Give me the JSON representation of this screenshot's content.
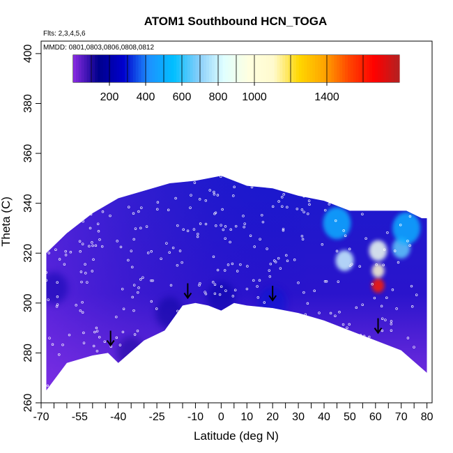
{
  "chart_data": {
    "type": "heatmap",
    "title": "ATOM1 Southbound HCN_TOGA",
    "flights_label": "Flts: 2,3,4,5,6",
    "dates_label": "MMDD: 0801,0803,0806,0808,0812",
    "xlabel": "Latitude (deg N)",
    "ylabel": "Theta (C)",
    "xlim": [
      -70,
      82
    ],
    "ylim": [
      260,
      405
    ],
    "x_ticks": [
      "-70",
      "-55",
      "-40",
      "-25",
      "-10",
      "0",
      "10",
      "20",
      "30",
      "40",
      "50",
      "60",
      "70",
      "80"
    ],
    "x_tick_values": [
      -70,
      -55,
      -40,
      -25,
      -10,
      0,
      10,
      20,
      30,
      40,
      50,
      60,
      70,
      80
    ],
    "x_minor_ticks": [
      -65,
      -60,
      -50,
      -45,
      -35,
      -30,
      -20,
      -15,
      -5,
      5,
      15,
      25,
      35,
      45,
      55,
      65,
      75
    ],
    "y_ticks": [
      "260",
      "280",
      "300",
      "320",
      "340",
      "360",
      "380",
      "400"
    ],
    "y_tick_values": [
      260,
      280,
      300,
      320,
      340,
      360,
      380,
      400
    ],
    "colorbar": {
      "range": [
        0,
        1800
      ],
      "tick_labels": [
        "200",
        "400",
        "600",
        "800",
        "1000",
        "1400"
      ],
      "tick_values": [
        200,
        400,
        600,
        800,
        1000,
        1400
      ],
      "colors": [
        "#8a2be2",
        "#00008b",
        "#0000cd",
        "#1e90ff",
        "#00bfff",
        "#87cefa",
        "#e0ffff",
        "#ffffe0",
        "#fffacd",
        "#ffd700",
        "#ffa500",
        "#ff4500",
        "#ff0000",
        "#b22222"
      ]
    },
    "profile_top": [
      [
        -68,
        320
      ],
      [
        -60,
        328
      ],
      [
        -50,
        336
      ],
      [
        -40,
        342
      ],
      [
        -30,
        345
      ],
      [
        -20,
        348
      ],
      [
        -10,
        349
      ],
      [
        0,
        351
      ],
      [
        10,
        347
      ],
      [
        20,
        346
      ],
      [
        30,
        343
      ],
      [
        40,
        341
      ],
      [
        50,
        337
      ],
      [
        60,
        337
      ],
      [
        72,
        337
      ],
      [
        78,
        334
      ]
    ],
    "profile_bottom": [
      [
        -68,
        265
      ],
      [
        -60,
        276
      ],
      [
        -50,
        279
      ],
      [
        -44,
        280
      ],
      [
        -40,
        276
      ],
      [
        -30,
        285
      ],
      [
        -22,
        289
      ],
      [
        -15,
        299
      ],
      [
        -10,
        300
      ],
      [
        -5,
        299
      ],
      [
        0,
        297
      ],
      [
        5,
        300
      ],
      [
        10,
        299
      ],
      [
        20,
        298
      ],
      [
        30,
        296
      ],
      [
        40,
        293
      ],
      [
        50,
        289
      ],
      [
        60,
        285
      ],
      [
        70,
        281
      ],
      [
        80,
        272
      ]
    ],
    "features": [
      {
        "x": 61,
        "y": 307,
        "value": 1600
      },
      {
        "x": 61,
        "y": 313,
        "value": 1100
      },
      {
        "x": 61,
        "y": 321,
        "value": 900
      },
      {
        "x": 48,
        "y": 317,
        "value": 800
      },
      {
        "x": 70,
        "y": 322,
        "value": 650
      },
      {
        "x": 72,
        "y": 330,
        "value": 500
      },
      {
        "x": 45,
        "y": 332,
        "value": 500
      },
      {
        "x": 20,
        "y": 300,
        "value": 300
      },
      {
        "x": -65,
        "y": 306,
        "value": 200
      },
      {
        "x": -35,
        "y": 280,
        "value": 130
      },
      {
        "x": -20,
        "y": 296,
        "value": 160
      },
      {
        "x": 0,
        "y": 302,
        "value": 180
      }
    ],
    "arrows": [
      [
        -43,
        285
      ],
      [
        -13,
        304
      ],
      [
        20,
        303
      ],
      [
        61,
        290
      ]
    ]
  }
}
